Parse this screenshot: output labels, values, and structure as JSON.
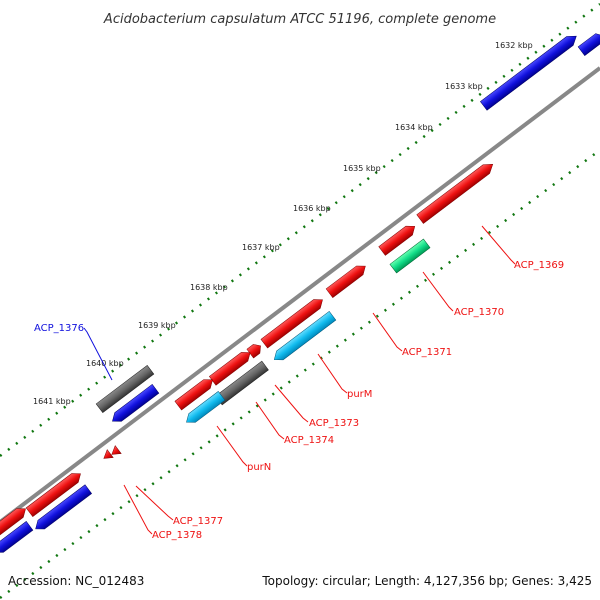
{
  "title": "Acidobacterium capsulatum ATCC 51196, complete genome",
  "colors": {
    "red": "#ee1111",
    "blue": "#1111dd",
    "gray": "#666666",
    "cyan": "#11bbee",
    "green": "#11dd88",
    "ticks": "#117711",
    "backbone": "#888888"
  },
  "ruler": [
    "1632 kbp",
    "1633 kbp",
    "1634 kbp",
    "1635 kbp",
    "1636 kbp",
    "1637 kbp",
    "1638 kbp",
    "1639 kbp",
    "1640 kbp",
    "1641 kbp"
  ],
  "genes": [
    {
      "label": "ACP_1369",
      "color": "red"
    },
    {
      "label": "ACP_1370",
      "color": "red"
    },
    {
      "label": "ACP_1371",
      "color": "red"
    },
    {
      "label": "purM",
      "color": "red"
    },
    {
      "label": "ACP_1373",
      "color": "red"
    },
    {
      "label": "ACP_1374",
      "color": "red"
    },
    {
      "label": "purN",
      "color": "red"
    },
    {
      "label": "ACP_1377",
      "color": "red"
    },
    {
      "label": "ACP_1378",
      "color": "red"
    },
    {
      "label": "ACP_1376",
      "color": "blue"
    }
  ],
  "footer": {
    "accession": "Accession: NC_012483",
    "topology": "Topology: circular; Length: 4,127,356 bp; Genes: 3,425"
  }
}
